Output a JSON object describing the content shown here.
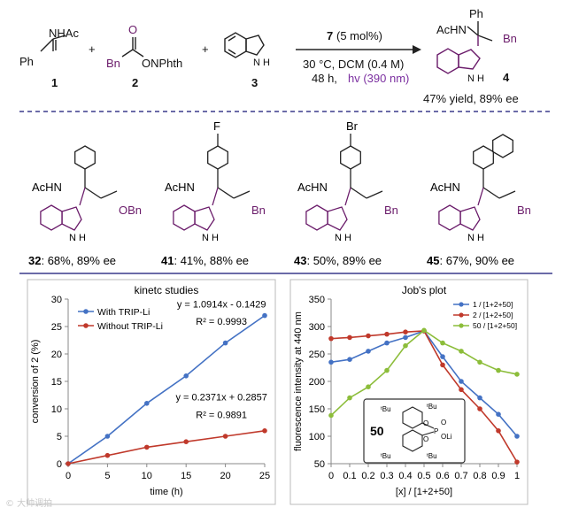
{
  "scheme": {
    "reagents": [
      {
        "id": "1",
        "label": "NHAc",
        "sub": "Ph"
      },
      {
        "id": "2",
        "label_a": "Bn",
        "label_b": "ONPhth",
        "label_c": "O"
      },
      {
        "id": "3",
        "label": "N H"
      }
    ],
    "plus": "+",
    "catalyst": "7",
    "catalyst_loading": "(5 mol%)",
    "conditions_1": "30 °C, DCM (0.4 M)",
    "conditions_2": "48 h, ",
    "light": "hv (390 nm)",
    "product": {
      "id": "4",
      "ac": "AcHN",
      "ph": "Ph",
      "bn": "Bn",
      "nh": "N H",
      "yield": "47% yield, 89% ee"
    }
  },
  "substrates": [
    {
      "id": "32",
      "result": ": 68%, 89% ee",
      "top": "",
      "side": "OBn"
    },
    {
      "id": "41",
      "result": ": 41%, 88% ee",
      "top": "F",
      "side": "Bn"
    },
    {
      "id": "43",
      "result": ": 50%, 89% ee",
      "top": "Br",
      "side": "Bn"
    },
    {
      "id": "45",
      "result": ": 67%, 90% ee",
      "top": "",
      "side": "Bn"
    }
  ],
  "common_labels": {
    "achn": "AcHN",
    "nh": "N H"
  },
  "chart_data": [
    {
      "type": "scatter",
      "title": "kinetc studies",
      "xlabel": "time (h)",
      "ylabel": "conversion of 2 (%)",
      "xlim": [
        0,
        25
      ],
      "ylim": [
        0,
        30
      ],
      "xticks": [
        0,
        5,
        10,
        15,
        20,
        25
      ],
      "yticks": [
        0,
        5,
        10,
        15,
        20,
        25,
        30
      ],
      "grid": false,
      "legend": "top-left",
      "series": [
        {
          "name": "With TRIP-Li",
          "color": "#4472c4",
          "x": [
            0,
            5,
            10,
            15,
            20,
            25
          ],
          "y": [
            0,
            5,
            11,
            16,
            22,
            27
          ]
        },
        {
          "name": "Without TRIP-Li",
          "color": "#c0392b",
          "x": [
            0,
            5,
            10,
            15,
            20,
            25
          ],
          "y": [
            0,
            1.5,
            3,
            4,
            5,
            6
          ]
        }
      ],
      "annotations": [
        {
          "text": "y = 1.0914x - 0.1429",
          "at": [
            19.5,
            28.5
          ]
        },
        {
          "text": "R² = 0.9993",
          "at": [
            19.5,
            25.3
          ]
        },
        {
          "text": "y = 0.2371x + 0.2857",
          "at": [
            19.5,
            11.5
          ]
        },
        {
          "text": "R² = 0.9891",
          "at": [
            19.5,
            8.3
          ]
        }
      ]
    },
    {
      "type": "line",
      "title": "Job's plot",
      "xlabel": "[x] / [1+2+50]",
      "ylabel": "fluorescence intensity at 440 nm",
      "xlim": [
        0,
        1
      ],
      "ylim": [
        50,
        350
      ],
      "xticks": [
        0,
        0.1,
        0.2,
        0.3,
        0.4,
        0.5,
        0.6,
        0.7,
        0.8,
        0.9,
        1
      ],
      "yticks": [
        50,
        100,
        150,
        200,
        250,
        300,
        350
      ],
      "grid": false,
      "legend": "top-right",
      "x": [
        0,
        0.1,
        0.2,
        0.3,
        0.4,
        0.5,
        0.6,
        0.7,
        0.8,
        0.9,
        1
      ],
      "series": [
        {
          "name": "1 / [1+2+50]",
          "color": "#4472c4",
          "values": [
            235,
            240,
            255,
            270,
            280,
            292,
            245,
            200,
            170,
            140,
            100
          ]
        },
        {
          "name": "2 / [1+2+50]",
          "color": "#c0392b",
          "values": [
            278,
            280,
            283,
            286,
            290,
            292,
            230,
            185,
            150,
            110,
            53
          ]
        },
        {
          "name": "50 / [1+2+50]",
          "color": "#8cbd3a",
          "values": [
            138,
            170,
            190,
            220,
            265,
            293,
            270,
            255,
            235,
            220,
            213
          ]
        }
      ],
      "inset": {
        "id": "50",
        "tbu": "ᵗBu",
        "o": "O",
        "p": "P",
        "oli": "OLi"
      }
    }
  ]
}
